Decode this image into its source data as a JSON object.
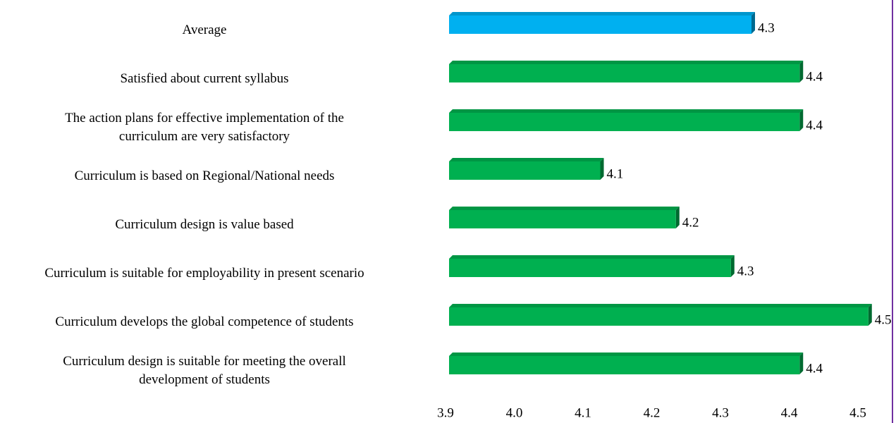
{
  "chart_data": {
    "type": "bar",
    "orientation": "horizontal",
    "categories": [
      "Average",
      "Satisfied about current syllabus",
      "The action plans for effective implementation of the\ncurriculum are very satisfactory",
      "Curriculum is based on Regional/National needs",
      "Curriculum design is value based",
      "Curriculum is suitable for employability in present scenario",
      "Curriculum develops the global competence of students",
      "Curriculum design is suitable for meeting the overall\ndevelopment of students"
    ],
    "values": [
      4.34,
      4.41,
      4.41,
      4.12,
      4.23,
      4.31,
      4.51,
      4.41
    ],
    "value_labels": [
      "4.3",
      "4.4",
      "4.4",
      "4.1",
      "4.2",
      "4.3",
      "4.5",
      "4.4"
    ],
    "colors": [
      "#00b0f0",
      "#00b050",
      "#00b050",
      "#00b050",
      "#00b050",
      "#00b050",
      "#00b050",
      "#00b050"
    ],
    "xlim": [
      3.9,
      4.5
    ],
    "xticks": [
      3.9,
      {
        "value": 4,
        "label": "4.0"
      },
      4.1,
      4.2,
      4.3,
      4.4,
      4.5
    ]
  }
}
